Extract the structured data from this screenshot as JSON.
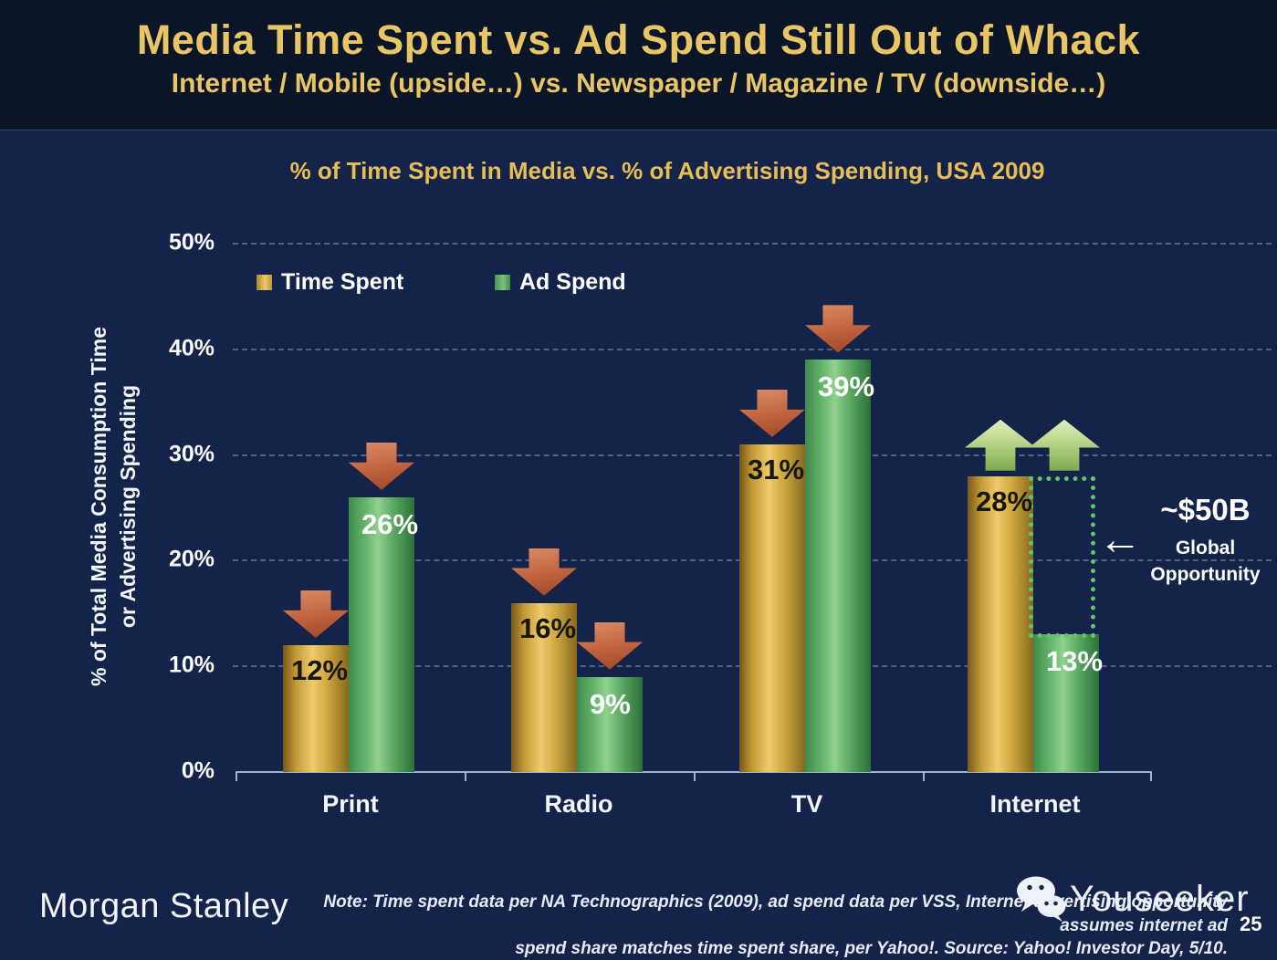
{
  "slide": {
    "title": "Media Time Spent vs. Ad Spend Still Out of Whack",
    "subtitle": "Internet / Mobile (upside…) vs. Newspaper / Magazine / TV (downside…)"
  },
  "chart_data": {
    "type": "bar",
    "title": "% of Time Spent in Media vs. % of Advertising Spending, USA 2009",
    "ylabel_line1": "% of Total Media Consumption Time",
    "ylabel_line2": "or Advertising Spending",
    "categories": [
      "Print",
      "Radio",
      "TV",
      "Internet"
    ],
    "series": [
      {
        "name": "Time Spent",
        "color": "#d9ab42",
        "values": [
          12,
          16,
          31,
          28
        ]
      },
      {
        "name": "Ad Spend",
        "color": "#58a55e",
        "values": [
          26,
          9,
          39,
          13
        ]
      }
    ],
    "ylim": [
      0,
      50
    ],
    "yticks": [
      {
        "label": "50%",
        "value": 50
      },
      {
        "label": "40%",
        "value": 40
      },
      {
        "label": "30%",
        "value": 30
      },
      {
        "label": "20%",
        "value": 20
      },
      {
        "label": "10%",
        "value": 10
      },
      {
        "label": "0%",
        "value": 0
      }
    ],
    "grid": "dashed horizontal gridlines on",
    "legend_position": "top-left inside plot",
    "category_trends": [
      "down",
      "down",
      "down",
      "up"
    ],
    "annotations": {
      "opportunity_value": "~$50B",
      "opportunity_line1": "Global",
      "opportunity_line2": "Opportunity",
      "opportunity_arrow": "←",
      "opportunity_target": "gap between Internet Time Spent (28%) and Internet Ad Spend (13%) shown as dotted box"
    }
  },
  "colors": {
    "header_background": "#0a1628",
    "body_background": "#14234a",
    "title_gold": "#eac566",
    "bar_gold": "#d9ab42",
    "bar_green": "#58a55e",
    "down_arrow": "#c66945",
    "up_arrow": "#b8d489",
    "dotted_box_green": "#5ec56b",
    "axis_line": "#9db0cc"
  },
  "footer": {
    "brand": "Morgan Stanley",
    "note_line1": "Note: Time spent data per NA Technographics (2009), ad spend data per VSS, Internet advertising opportunity assumes internet ad",
    "note_line2": "spend share matches time spent share, per Yahoo!. Source: Yahoo! Investor Day, 5/10.",
    "watermark": "Youseeker",
    "watermark_icon": "wechat-icon",
    "page": "25"
  }
}
